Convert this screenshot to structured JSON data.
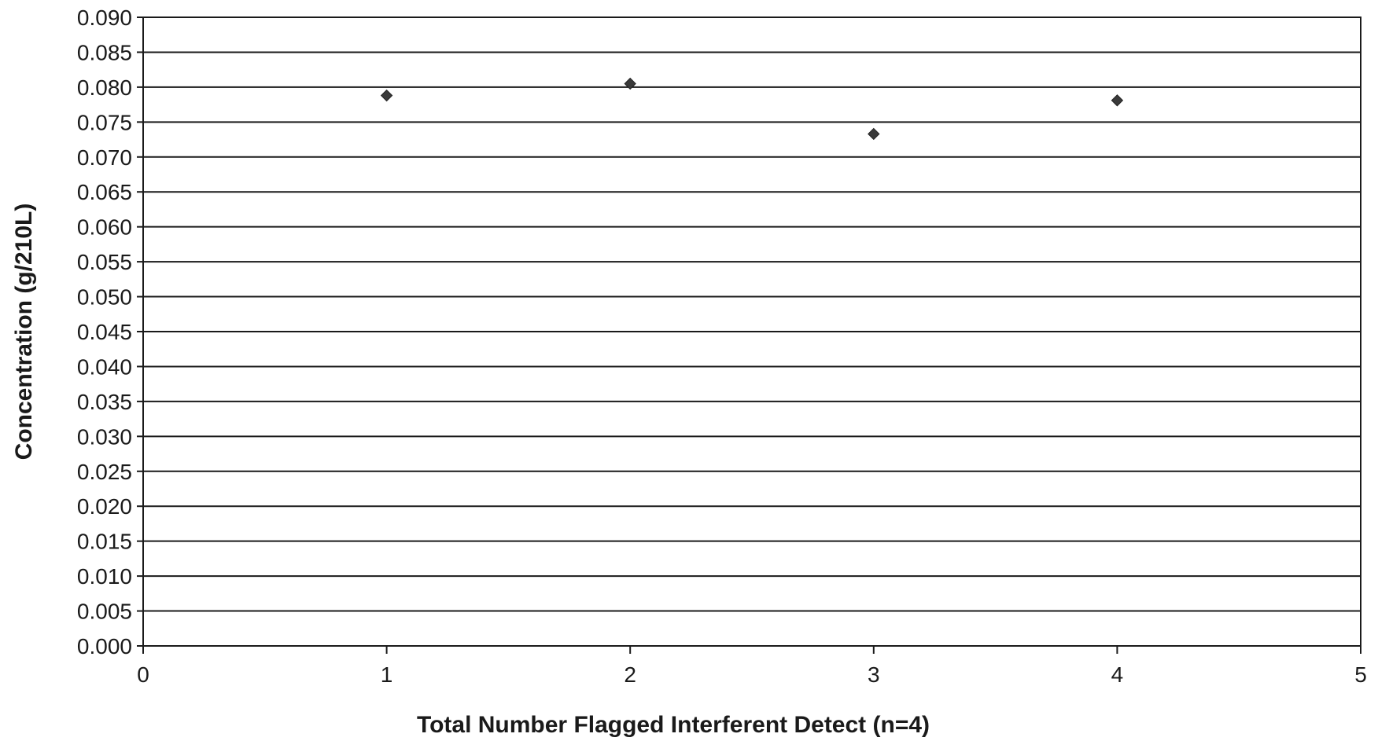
{
  "chart_data": {
    "type": "scatter",
    "title": "",
    "xlabel": "Total Number Flagged Interferent Detect (n=4)",
    "ylabel": "Concentration (g/210L)",
    "xlim": [
      0,
      5
    ],
    "ylim": [
      0.0,
      0.09
    ],
    "x_ticks": [
      "0",
      "1",
      "2",
      "3",
      "4",
      "5"
    ],
    "y_ticks": [
      "0.000",
      "0.005",
      "0.010",
      "0.015",
      "0.020",
      "0.025",
      "0.030",
      "0.035",
      "0.040",
      "0.045",
      "0.050",
      "0.055",
      "0.060",
      "0.065",
      "0.070",
      "0.075",
      "0.080",
      "0.085",
      "0.090"
    ],
    "grid": true,
    "legend": "none",
    "marker": "diamond",
    "marker_color": "#3a3a3a",
    "series": [
      {
        "x": [
          1,
          2,
          3,
          4
        ],
        "y": [
          0.0788,
          0.0805,
          0.0733,
          0.0781
        ]
      }
    ]
  }
}
